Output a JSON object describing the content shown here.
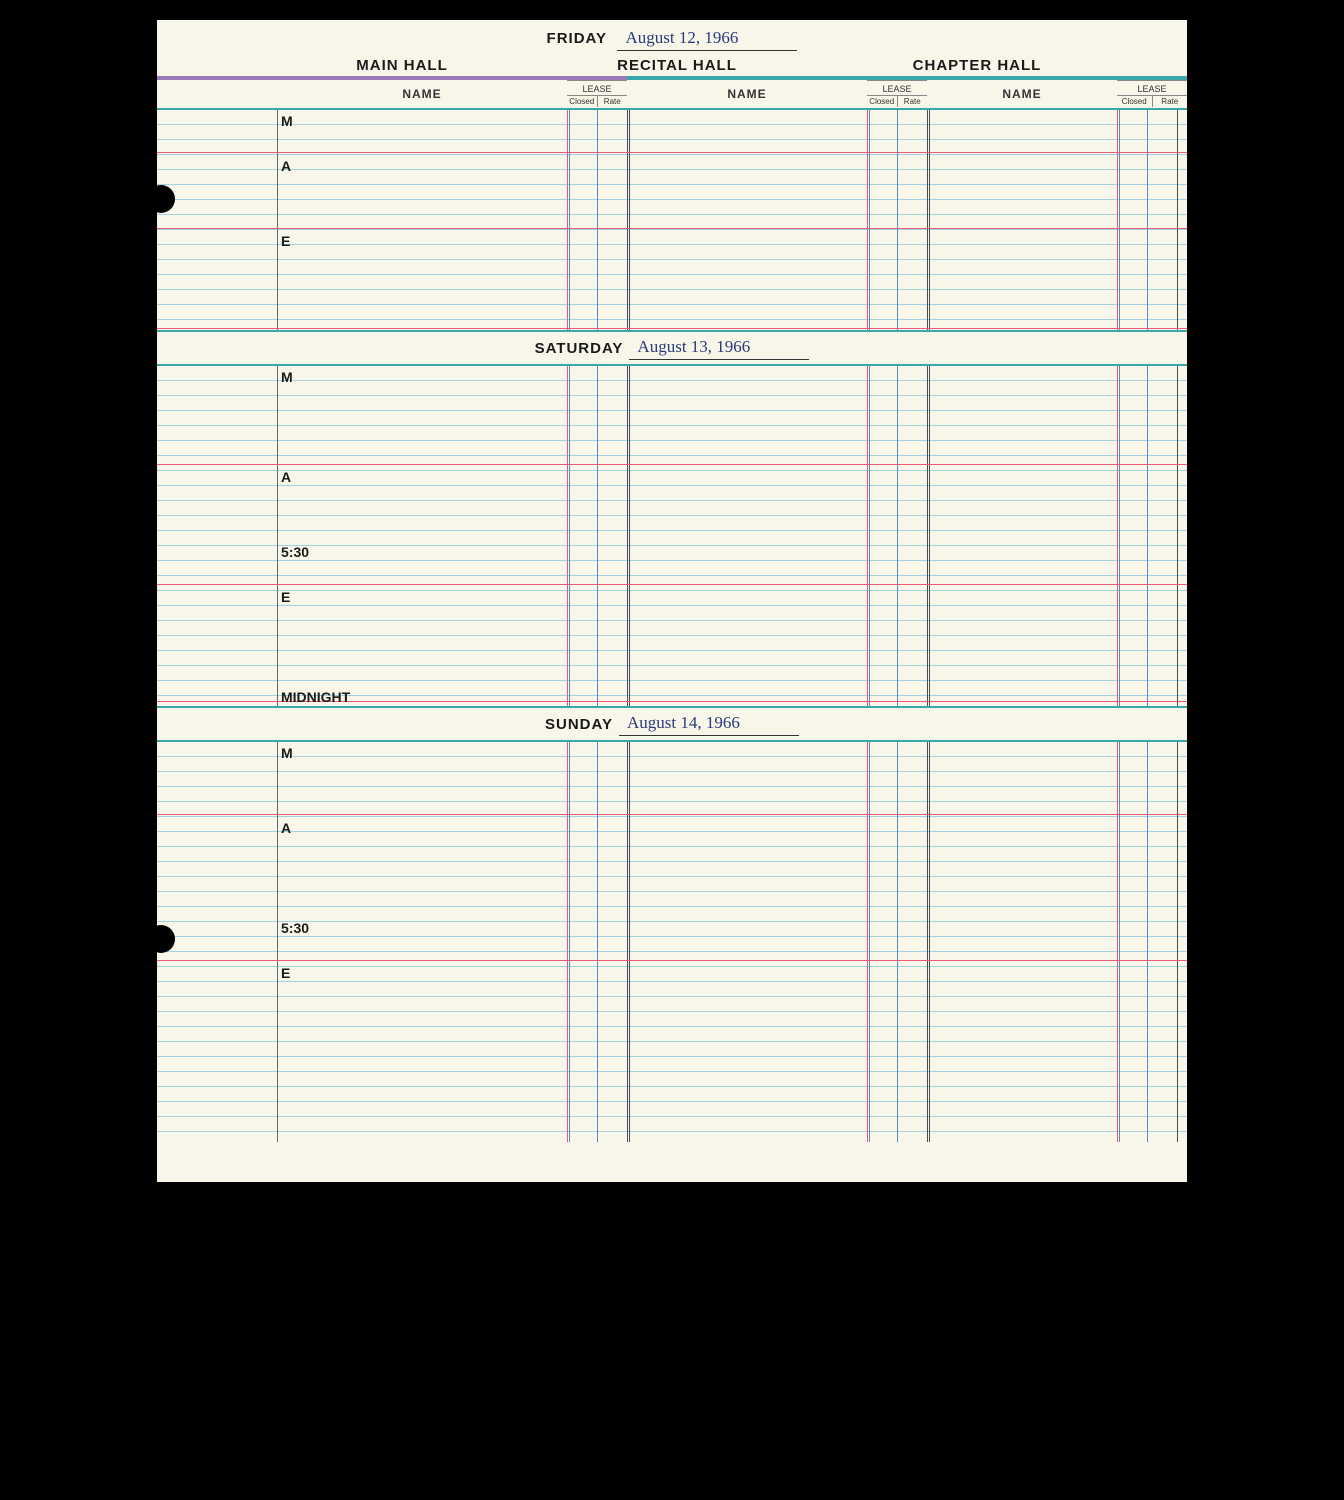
{
  "archive_reference": "CHA-BL-V.11-101",
  "halls": {
    "main": "MAIN HALL",
    "recital": "RECITAL HALL",
    "chapter": "CHAPTER HALL"
  },
  "column_headers": {
    "name": "NAME",
    "lease": "LEASE",
    "closed": "Closed",
    "rate": "Rate"
  },
  "days": [
    {
      "day_label": "FRIDAY",
      "date_text": "August 12, 1966",
      "time_slots": [
        "M",
        "A",
        "E"
      ],
      "section_height": 220,
      "slot_positions": [
        0,
        45,
        120
      ],
      "red_lines": [
        42,
        118,
        218
      ]
    },
    {
      "day_label": "SATURDAY",
      "date_text": "August 13, 1966",
      "time_slots": [
        "M",
        "A",
        "5:30",
        "E",
        "MIDNIGHT"
      ],
      "section_height": 340,
      "slot_positions": [
        0,
        100,
        175,
        220,
        320
      ],
      "red_lines": [
        98,
        218,
        335
      ]
    },
    {
      "day_label": "SUNDAY",
      "date_text": "August 14, 1966",
      "time_slots": [
        "M",
        "A",
        "5:30",
        "E"
      ],
      "section_height": 400,
      "slot_positions": [
        0,
        75,
        175,
        220
      ],
      "red_lines": [
        72,
        218
      ]
    }
  ],
  "column_x": {
    "time_col": 120,
    "main_name_start": 120,
    "main_lease_start": 410,
    "main_lease_mid": 440,
    "main_end": 470,
    "recital_name_start": 470,
    "recital_lease_start": 710,
    "recital_lease_mid": 740,
    "recital_end": 770,
    "chapter_name_start": 770,
    "chapter_lease_start": 960,
    "chapter_lease_mid": 990,
    "chapter_end": 1020
  },
  "colors": {
    "vline_time": "#5a6a7a",
    "vline_red": "#e85a7a",
    "vline_blue": "#5a8ab8",
    "vline_dark": "#4a4a5a",
    "paper": "#f8f6e8",
    "rule": "#6bb8d8",
    "teal": "#3aa8a8",
    "purple": "#9a7ab8"
  },
  "hole_punches": [
    165,
    905
  ]
}
